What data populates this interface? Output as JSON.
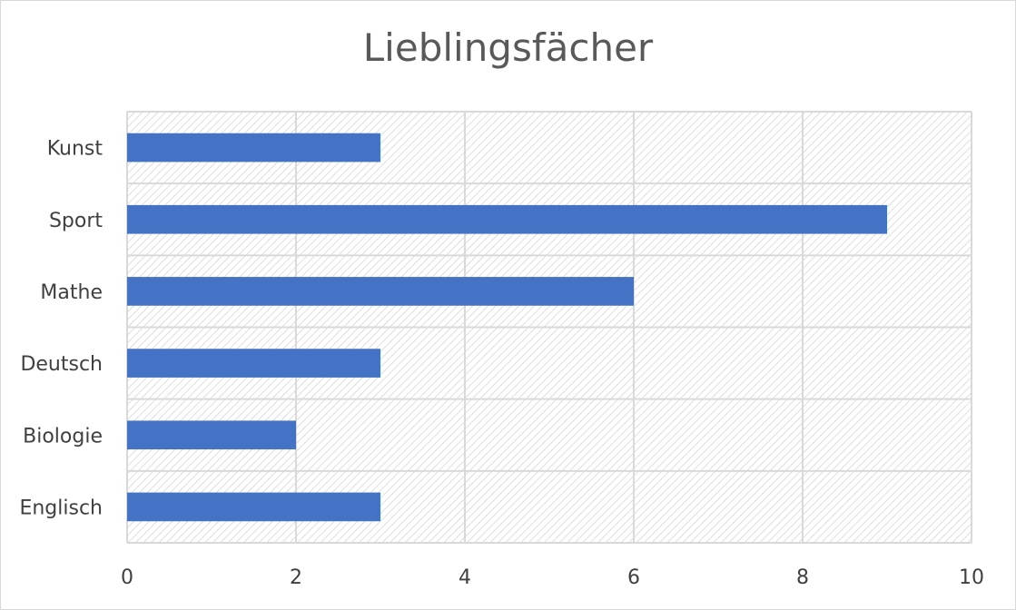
{
  "chart_data": {
    "type": "bar",
    "orientation": "horizontal",
    "title": "Lieblingsfächer",
    "categories": [
      "Englisch",
      "Biologie",
      "Deutsch",
      "Mathe",
      "Sport",
      "Kunst"
    ],
    "values": [
      3,
      2,
      3,
      6,
      9,
      3
    ],
    "xlim": [
      0,
      10
    ],
    "x_ticks": [
      "0",
      "2",
      "4",
      "6",
      "8",
      "10"
    ],
    "grid": true,
    "legend": "none",
    "colors": {
      "bar": "#4472c4",
      "grid": "#d9d9d9",
      "hatch": "#c8c8c8",
      "text": "#404040",
      "title": "#595959"
    }
  }
}
